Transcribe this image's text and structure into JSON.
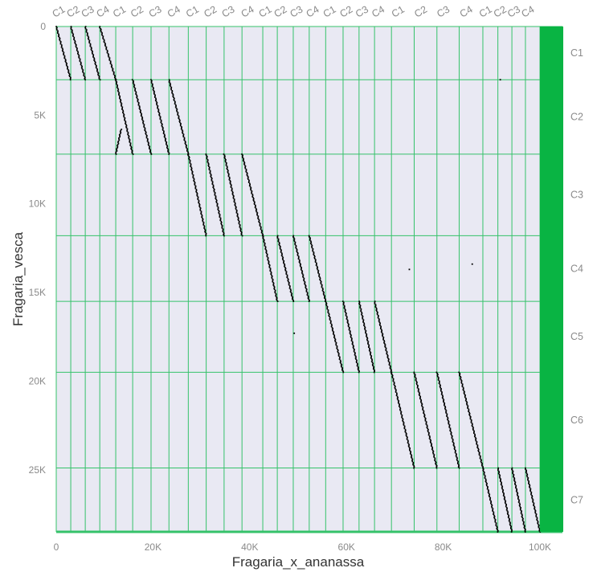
{
  "colors": {
    "panel_background": "#e9e9f3",
    "grid_line": "#35c26a",
    "dot": "#000000",
    "right_band": "#09b443",
    "tick_text": "#8a8a8a",
    "axis_title": "#333333"
  },
  "chart_data": {
    "type": "scatter",
    "plot_style": "dotplot",
    "xlabel": "Fragaria_x_ananassa",
    "ylabel": "Fragaria_vesca",
    "xlim": [
      0,
      100000
    ],
    "ylim": [
      28500,
      0
    ],
    "x_ticks": [
      {
        "value": 0,
        "label": "0"
      },
      {
        "value": 20000,
        "label": "20K"
      },
      {
        "value": 40000,
        "label": "40K"
      },
      {
        "value": 60000,
        "label": "60K"
      },
      {
        "value": 80000,
        "label": "80K"
      },
      {
        "value": 100000,
        "label": "100K"
      }
    ],
    "y_ticks": [
      {
        "value": 0,
        "label": "0"
      },
      {
        "value": 5000,
        "label": "5K"
      },
      {
        "value": 10000,
        "label": "10K"
      },
      {
        "value": 15000,
        "label": "15K"
      },
      {
        "value": 20000,
        "label": "20K"
      },
      {
        "value": 25000,
        "label": "25K"
      }
    ],
    "x_sequences": [
      {
        "label": "C1",
        "start": 0,
        "end": 3000
      },
      {
        "label": "C2",
        "start": 3000,
        "end": 6000
      },
      {
        "label": "C3",
        "start": 6000,
        "end": 9000
      },
      {
        "label": "C4",
        "start": 9000,
        "end": 12300
      },
      {
        "label": "C1",
        "start": 12300,
        "end": 15800
      },
      {
        "label": "C2",
        "start": 15800,
        "end": 19600
      },
      {
        "label": "C3",
        "start": 19600,
        "end": 23300
      },
      {
        "label": "C4",
        "start": 23300,
        "end": 27300
      },
      {
        "label": "C1",
        "start": 27300,
        "end": 31000
      },
      {
        "label": "C2",
        "start": 31000,
        "end": 34700
      },
      {
        "label": "C3",
        "start": 34700,
        "end": 38400
      },
      {
        "label": "C4",
        "start": 38400,
        "end": 42700
      },
      {
        "label": "C1",
        "start": 42700,
        "end": 45700
      },
      {
        "label": "C2",
        "start": 45700,
        "end": 49000
      },
      {
        "label": "C3",
        "start": 49000,
        "end": 52300
      },
      {
        "label": "C4",
        "start": 52300,
        "end": 55700
      },
      {
        "label": "C1",
        "start": 55700,
        "end": 59300
      },
      {
        "label": "C2",
        "start": 59300,
        "end": 62600
      },
      {
        "label": "C3",
        "start": 62600,
        "end": 65800
      },
      {
        "label": "C4",
        "start": 65800,
        "end": 69300
      },
      {
        "label": "C1",
        "start": 69300,
        "end": 74000
      },
      {
        "label": "C2",
        "start": 74000,
        "end": 78700
      },
      {
        "label": "C3",
        "start": 78700,
        "end": 83300
      },
      {
        "label": "C4",
        "start": 83300,
        "end": 88200
      },
      {
        "label": "C1",
        "start": 88200,
        "end": 91300
      },
      {
        "label": "C2",
        "start": 91300,
        "end": 94200
      },
      {
        "label": "C3",
        "start": 94200,
        "end": 97000
      },
      {
        "label": "C4",
        "start": 97000,
        "end": 100000
      }
    ],
    "y_sequences": [
      {
        "label": "C1",
        "start": 0,
        "end": 3000
      },
      {
        "label": "C2",
        "start": 3000,
        "end": 7200
      },
      {
        "label": "C3",
        "start": 7200,
        "end": 11800
      },
      {
        "label": "C4",
        "start": 11800,
        "end": 15500
      },
      {
        "label": "C5",
        "start": 15500,
        "end": 19500
      },
      {
        "label": "C6",
        "start": 19500,
        "end": 24900
      },
      {
        "label": "C7",
        "start": 24900,
        "end": 28500
      }
    ],
    "alignments": [
      {
        "x": [
          0,
          3000
        ],
        "y": [
          0,
          3000
        ]
      },
      {
        "x": [
          3000,
          6000
        ],
        "y": [
          0,
          3000
        ]
      },
      {
        "x": [
          6000,
          9000
        ],
        "y": [
          0,
          3000
        ]
      },
      {
        "x": [
          9000,
          12300
        ],
        "y": [
          0,
          3000
        ]
      },
      {
        "x": [
          12300,
          15800
        ],
        "y": [
          3000,
          7200
        ]
      },
      {
        "x": [
          15800,
          19600
        ],
        "y": [
          3000,
          7200
        ]
      },
      {
        "x": [
          19600,
          23300
        ],
        "y": [
          3000,
          7200
        ]
      },
      {
        "x": [
          23300,
          27300
        ],
        "y": [
          3000,
          7200
        ]
      },
      {
        "x": [
          12300,
          13400
        ],
        "y": [
          7200,
          5800
        ]
      },
      {
        "x": [
          27300,
          31000
        ],
        "y": [
          7200,
          11800
        ]
      },
      {
        "x": [
          31000,
          34700
        ],
        "y": [
          7200,
          11800
        ]
      },
      {
        "x": [
          34700,
          38400
        ],
        "y": [
          7200,
          11800
        ]
      },
      {
        "x": [
          38400,
          42700
        ],
        "y": [
          7200,
          11800
        ]
      },
      {
        "x": [
          42700,
          45700
        ],
        "y": [
          11800,
          15500
        ]
      },
      {
        "x": [
          45700,
          49000
        ],
        "y": [
          11800,
          15500
        ]
      },
      {
        "x": [
          49000,
          52300
        ],
        "y": [
          11800,
          15500
        ]
      },
      {
        "x": [
          52300,
          55700
        ],
        "y": [
          11800,
          15500
        ]
      },
      {
        "x": [
          55700,
          59300
        ],
        "y": [
          15500,
          19500
        ]
      },
      {
        "x": [
          59300,
          62600
        ],
        "y": [
          15500,
          19500
        ]
      },
      {
        "x": [
          62600,
          65800
        ],
        "y": [
          15500,
          19500
        ]
      },
      {
        "x": [
          65800,
          69300
        ],
        "y": [
          15500,
          19500
        ]
      },
      {
        "x": [
          69300,
          74000
        ],
        "y": [
          19500,
          24900
        ]
      },
      {
        "x": [
          74000,
          78700
        ],
        "y": [
          19500,
          24900
        ]
      },
      {
        "x": [
          78700,
          83300
        ],
        "y": [
          19500,
          24900
        ]
      },
      {
        "x": [
          83300,
          88200
        ],
        "y": [
          19500,
          24900
        ]
      },
      {
        "x": [
          88200,
          91300
        ],
        "y": [
          24900,
          28500
        ]
      },
      {
        "x": [
          91300,
          94200
        ],
        "y": [
          24900,
          28500
        ]
      },
      {
        "x": [
          94200,
          97000
        ],
        "y": [
          24900,
          28500
        ]
      },
      {
        "x": [
          97000,
          100000
        ],
        "y": [
          24900,
          28500
        ]
      }
    ],
    "isolated_points": [
      {
        "x": 91800,
        "y": 3000
      },
      {
        "x": 73000,
        "y": 13700
      },
      {
        "x": 86000,
        "y": 13400
      },
      {
        "x": 49200,
        "y": 17300
      }
    ]
  }
}
